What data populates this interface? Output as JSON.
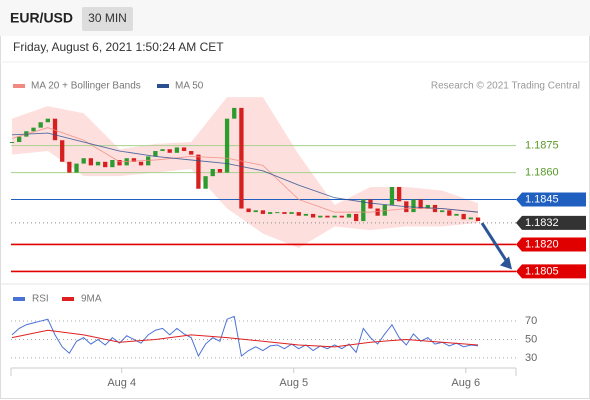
{
  "header": {
    "symbol": "EUR/USD",
    "timeframe": "30 MIN",
    "datetime": "Friday, August 6, 2021 1:50:24 AM CET"
  },
  "chart_data": [
    {
      "type": "candlestick",
      "credit": "Research © 2021 Trading Central",
      "up_color": "#2e9b2e",
      "down_color": "#d62020",
      "xlim": [
        0,
        65
      ],
      "ylim": [
        1.1798,
        1.1936
      ],
      "closes": [
        1.1877,
        1.188,
        1.1883,
        1.1885,
        1.1888,
        1.189,
        1.1878,
        1.1866,
        1.186,
        1.1865,
        1.1868,
        1.1864,
        1.1866,
        1.1863,
        1.1867,
        1.1864,
        1.1868,
        1.1866,
        1.1864,
        1.1869,
        1.1872,
        1.1873,
        1.1871,
        1.1874,
        1.1872,
        1.187,
        1.1851,
        1.1858,
        1.1862,
        1.186,
        1.189,
        1.1896,
        1.184,
        1.1838,
        1.1839,
        1.1837,
        1.1838,
        1.1838,
        1.1837,
        1.1838,
        1.1836,
        1.1837,
        1.1835,
        1.1836,
        1.1835,
        1.1836,
        1.1835,
        1.1837,
        1.1833,
        1.1845,
        1.184,
        1.1836,
        1.1842,
        1.1852,
        1.1844,
        1.1838,
        1.1845,
        1.184,
        1.1842,
        1.1838,
        1.1839,
        1.1836,
        1.1837,
        1.1834,
        1.1835,
        1.1833
      ],
      "series": [
        {
          "name": "MA 20 + Bollinger Bands",
          "color": "#f08a80",
          "band_color": "#fde0de",
          "x": [
            0,
            5,
            10,
            15,
            20,
            25,
            30,
            35,
            40,
            45,
            50,
            55,
            60,
            65
          ],
          "values": [
            1.1879,
            1.1885,
            1.1878,
            1.1866,
            1.1867,
            1.1869,
            1.1868,
            1.1864,
            1.1845,
            1.1838,
            1.1838,
            1.184,
            1.184,
            1.1838
          ],
          "upper": [
            1.189,
            1.1897,
            1.1893,
            1.1873,
            1.1876,
            1.1877,
            1.1902,
            1.1902,
            1.187,
            1.1842,
            1.1852,
            1.1852,
            1.185,
            1.1843
          ],
          "lower": [
            1.187,
            1.1872,
            1.1858,
            1.1858,
            1.186,
            1.1862,
            1.184,
            1.1826,
            1.1818,
            1.183,
            1.1828,
            1.183,
            1.183,
            1.1832
          ]
        },
        {
          "name": "MA 50",
          "color": "#2b4f8f",
          "x": [
            0,
            5,
            10,
            15,
            20,
            25,
            30,
            35,
            40,
            45,
            50,
            55,
            60,
            65
          ],
          "values": [
            1.1881,
            1.1882,
            1.1877,
            1.1872,
            1.1869,
            1.1867,
            1.1865,
            1.1861,
            1.1853,
            1.1846,
            1.1843,
            1.1841,
            1.184,
            1.1838
          ]
        }
      ],
      "levels": [
        {
          "value": 1.1875,
          "color": "#a8d08d",
          "text_color": "#5a9a2a",
          "tag": false
        },
        {
          "value": 1.186,
          "label": "1.1860",
          "color": "#a8d08d",
          "text_color": "#5a9a2a",
          "tag": false
        },
        {
          "value": 1.1845,
          "color": "#1f5fbf",
          "text_color": "#ffffff",
          "tag": true
        },
        {
          "value": 1.1832,
          "color": "#333333",
          "text_color": "#ffffff",
          "tag": true,
          "dotted": true
        },
        {
          "value": 1.182,
          "label": "1.1820",
          "color": "#e00000",
          "text_color": "#ffffff",
          "tag": true
        },
        {
          "value": 1.1805,
          "color": "#e00000",
          "text_color": "#ffffff",
          "tag": true
        }
      ]
    },
    {
      "type": "line",
      "xlim": [
        0,
        65
      ],
      "ylim": [
        19,
        82
      ],
      "yticks": [
        30,
        50,
        70
      ],
      "xticks": [
        {
          "value": 15.3,
          "label": "Aug 4"
        },
        {
          "value": 39.3,
          "label": "Aug 5"
        },
        {
          "value": 63.3,
          "label": "Aug 6"
        }
      ],
      "series": [
        {
          "name": "RSI",
          "color": "#4a72d6",
          "values": [
            55,
            62,
            66,
            68,
            70,
            72,
            55,
            42,
            35,
            48,
            52,
            45,
            50,
            44,
            52,
            46,
            54,
            50,
            46,
            55,
            60,
            62,
            55,
            62,
            56,
            52,
            32,
            45,
            52,
            48,
            72,
            75,
            32,
            38,
            42,
            38,
            43,
            44,
            40,
            45,
            40,
            44,
            38,
            43,
            40,
            44,
            40,
            45,
            36,
            62,
            52,
            45,
            56,
            66,
            52,
            44,
            56,
            48,
            52,
            45,
            47,
            43,
            46,
            42,
            44,
            43
          ]
        },
        {
          "name": "9MA",
          "color": "#e02020",
          "x": [
            0,
            5,
            10,
            15,
            20,
            25,
            30,
            35,
            40,
            45,
            50,
            55,
            60,
            65
          ],
          "values": [
            52,
            60,
            55,
            47,
            50,
            55,
            52,
            48,
            44,
            42,
            47,
            50,
            47,
            44
          ]
        }
      ]
    }
  ]
}
